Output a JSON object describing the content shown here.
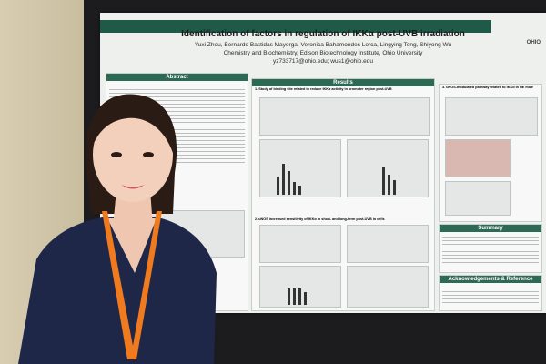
{
  "poster": {
    "title": "Identification of factors in regulation of IKKα post-UVB irradiation",
    "authors": "Yuxi Zhou, Bernardo Bastidas Mayorga, Veronica Bahamondes Lorca, Lingying Tong, Shiyong Wu",
    "affiliation": "Chemistry and Biochemistry, Edison Biotechnology Institute, Ohio University",
    "emails": "yz733717@ohio.edu; wus1@ohio.edu",
    "logo": "OHIO",
    "sections": {
      "abstract": "Abstract",
      "results": "Results",
      "summary": "Summary",
      "ack": "Acknowledgements & Reference"
    },
    "panel_a": "1. Study of binding site related to reduce IKKα activity in promoter region post-UVB",
    "panel_b": "2. uNOS increased sensitivity of IKKα in short- and long-term post-UVB in cells",
    "panel_c": "3. uNOS-modulated pathway related to IKKα in NE mice"
  }
}
